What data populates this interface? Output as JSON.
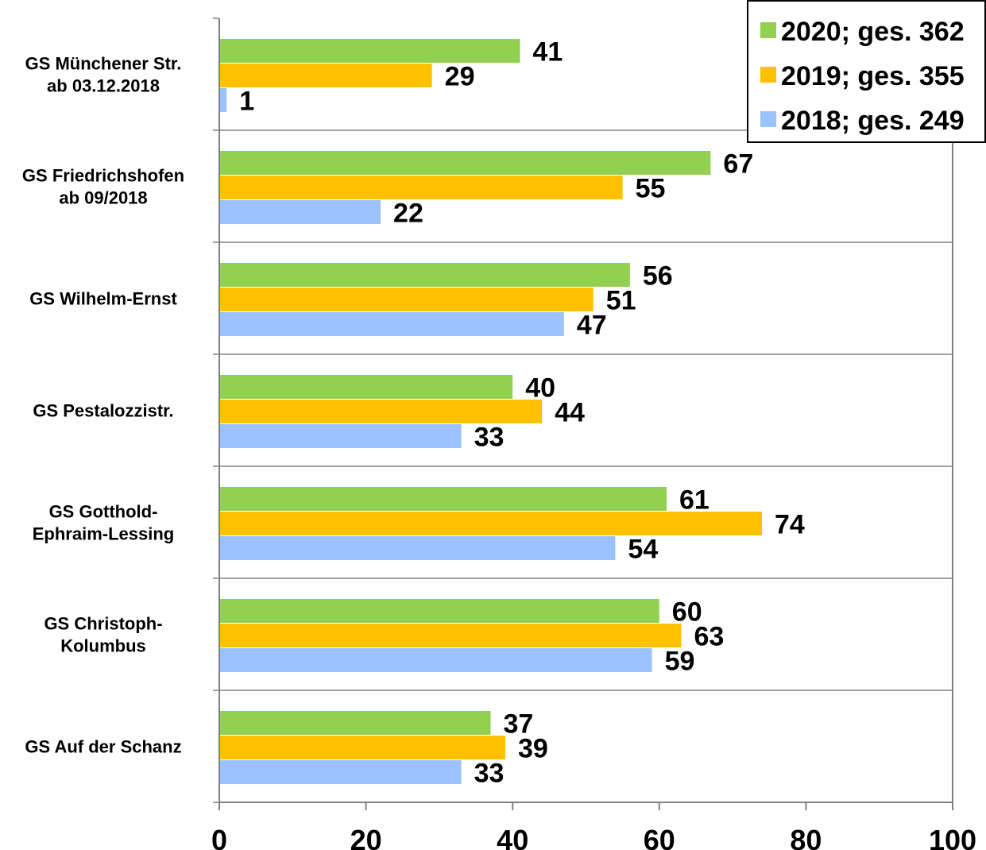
{
  "chart_data": {
    "type": "bar",
    "orientation": "horizontal",
    "categories": [
      [
        "GS Münchener Str.",
        "ab 03.12.2018"
      ],
      [
        "GS Friedrichshofen",
        "ab 09/2018"
      ],
      [
        "GS Wilhelm-Ernst"
      ],
      [
        "GS Pestalozzistr."
      ],
      [
        "GS Gotthold-",
        "Ephraim-Lessing"
      ],
      [
        "GS Christoph-",
        "Kolumbus"
      ],
      [
        "GS Auf der Schanz"
      ]
    ],
    "series": [
      {
        "name": "2020; ges. 362",
        "color": "#92d050",
        "values": [
          41,
          67,
          56,
          40,
          61,
          60,
          37
        ]
      },
      {
        "name": "2019; ges. 355",
        "color": "#ffc000",
        "values": [
          29,
          55,
          51,
          44,
          74,
          63,
          39
        ]
      },
      {
        "name": "2018; ges. 249",
        "color": "#99c2ff",
        "values": [
          1,
          22,
          47,
          33,
          54,
          59,
          33
        ]
      }
    ],
    "xlim": [
      0,
      100
    ],
    "xticks": [
      0,
      20,
      40,
      60,
      80,
      100
    ],
    "title": "",
    "xlabel": "",
    "ylabel": "",
    "grid": "horizontal separators between categories",
    "legend_position": "top-right"
  }
}
